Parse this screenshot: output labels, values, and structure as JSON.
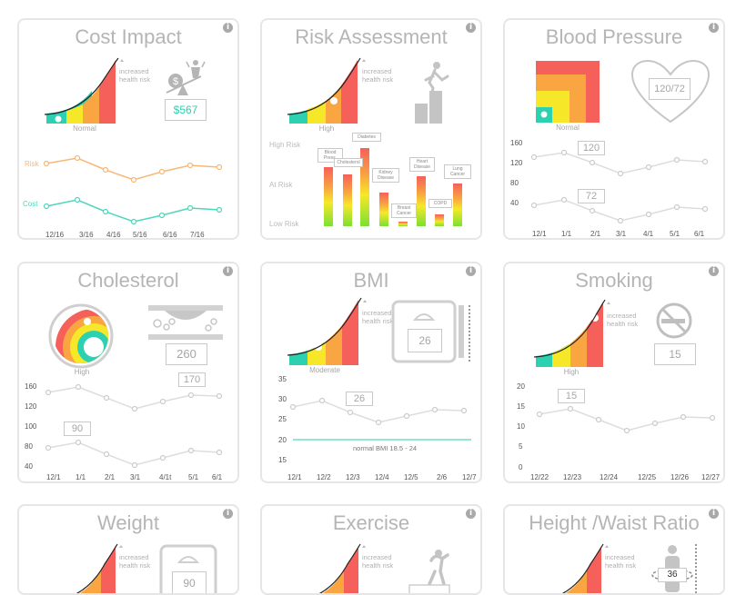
{
  "cards": {
    "cost": {
      "title": "Cost Impact",
      "increased": "increased health risk",
      "level": "Normal",
      "amount": "$567",
      "series_labels": [
        "Risk",
        "Cost"
      ],
      "x_labels": [
        "12/16",
        "3/16",
        "4/16",
        "5/16",
        "6/16",
        "7/16"
      ]
    },
    "risk": {
      "title": "Risk Assessment",
      "increased": "increased health risk",
      "level": "High",
      "y_labels": [
        "High Risk",
        "At Risk",
        "Low Risk"
      ],
      "bars": [
        "Blood Press.",
        "Cholesterol",
        "Diabetes",
        "Kidney Disease",
        "Breast Cancer",
        "Heart Disease",
        "COPD",
        "Lung Cancer"
      ]
    },
    "bp": {
      "title": "Blood Pressure",
      "level": "Normal",
      "reading": "120/72",
      "upper": "120",
      "lower": "72",
      "y_labels": [
        "160",
        "120",
        "80",
        "40"
      ],
      "x_labels": [
        "12/1",
        "1/1",
        "2/1",
        "3/1",
        "4/1",
        "5/1",
        "6/1"
      ]
    },
    "chol": {
      "title": "Cholesterol",
      "level": "High",
      "value": "260",
      "upper": "170",
      "lower": "90",
      "y_labels": [
        "160",
        "120",
        "100",
        "80",
        "40"
      ],
      "x_labels": [
        "12/1",
        "1/1",
        "2/1",
        "3/1",
        "4/1t",
        "5/1",
        "6/1"
      ]
    },
    "bmi": {
      "title": "BMI",
      "increased": "increased health risk",
      "level": "Moderate",
      "value": "26",
      "callout": "26",
      "note": "normal BMI 18.5 - 24",
      "y_labels": [
        "35",
        "30",
        "25",
        "20",
        "15"
      ],
      "x_labels": [
        "12/1",
        "12/2",
        "12/3",
        "12/4",
        "12/5",
        "2/6",
        "12/7"
      ]
    },
    "smoke": {
      "title": "Smoking",
      "increased": "increased health risk",
      "level": "High",
      "value": "15",
      "callout": "15",
      "y_labels": [
        "20",
        "15",
        "10",
        "5",
        "0"
      ],
      "x_labels": [
        "12/22",
        "12/23",
        "12/24",
        "12/25",
        "12/26",
        "12/27"
      ]
    },
    "weight": {
      "title": "Weight",
      "increased": "increased health risk",
      "value": "90"
    },
    "exercise": {
      "title": "Exercise",
      "increased": "increased health risk"
    },
    "hwr": {
      "title": "Height /Waist Ratio",
      "increased": "increased health risk",
      "value": "36"
    }
  },
  "colors": {
    "teal": "#2bd1b0",
    "yellow": "#f6e829",
    "orange": "#f9a541",
    "red": "#f6605a",
    "line": "#dddddd",
    "orange_line": "#f7b877",
    "teal_line": "#4fd6bb"
  },
  "icons": [
    "info-icon",
    "money-bag-scale-icon",
    "climbing-person-icon",
    "heart-icon",
    "artery-icon",
    "bathroom-scale-icon",
    "no-smoking-icon",
    "exercise-person-icon",
    "waist-measure-icon"
  ]
}
